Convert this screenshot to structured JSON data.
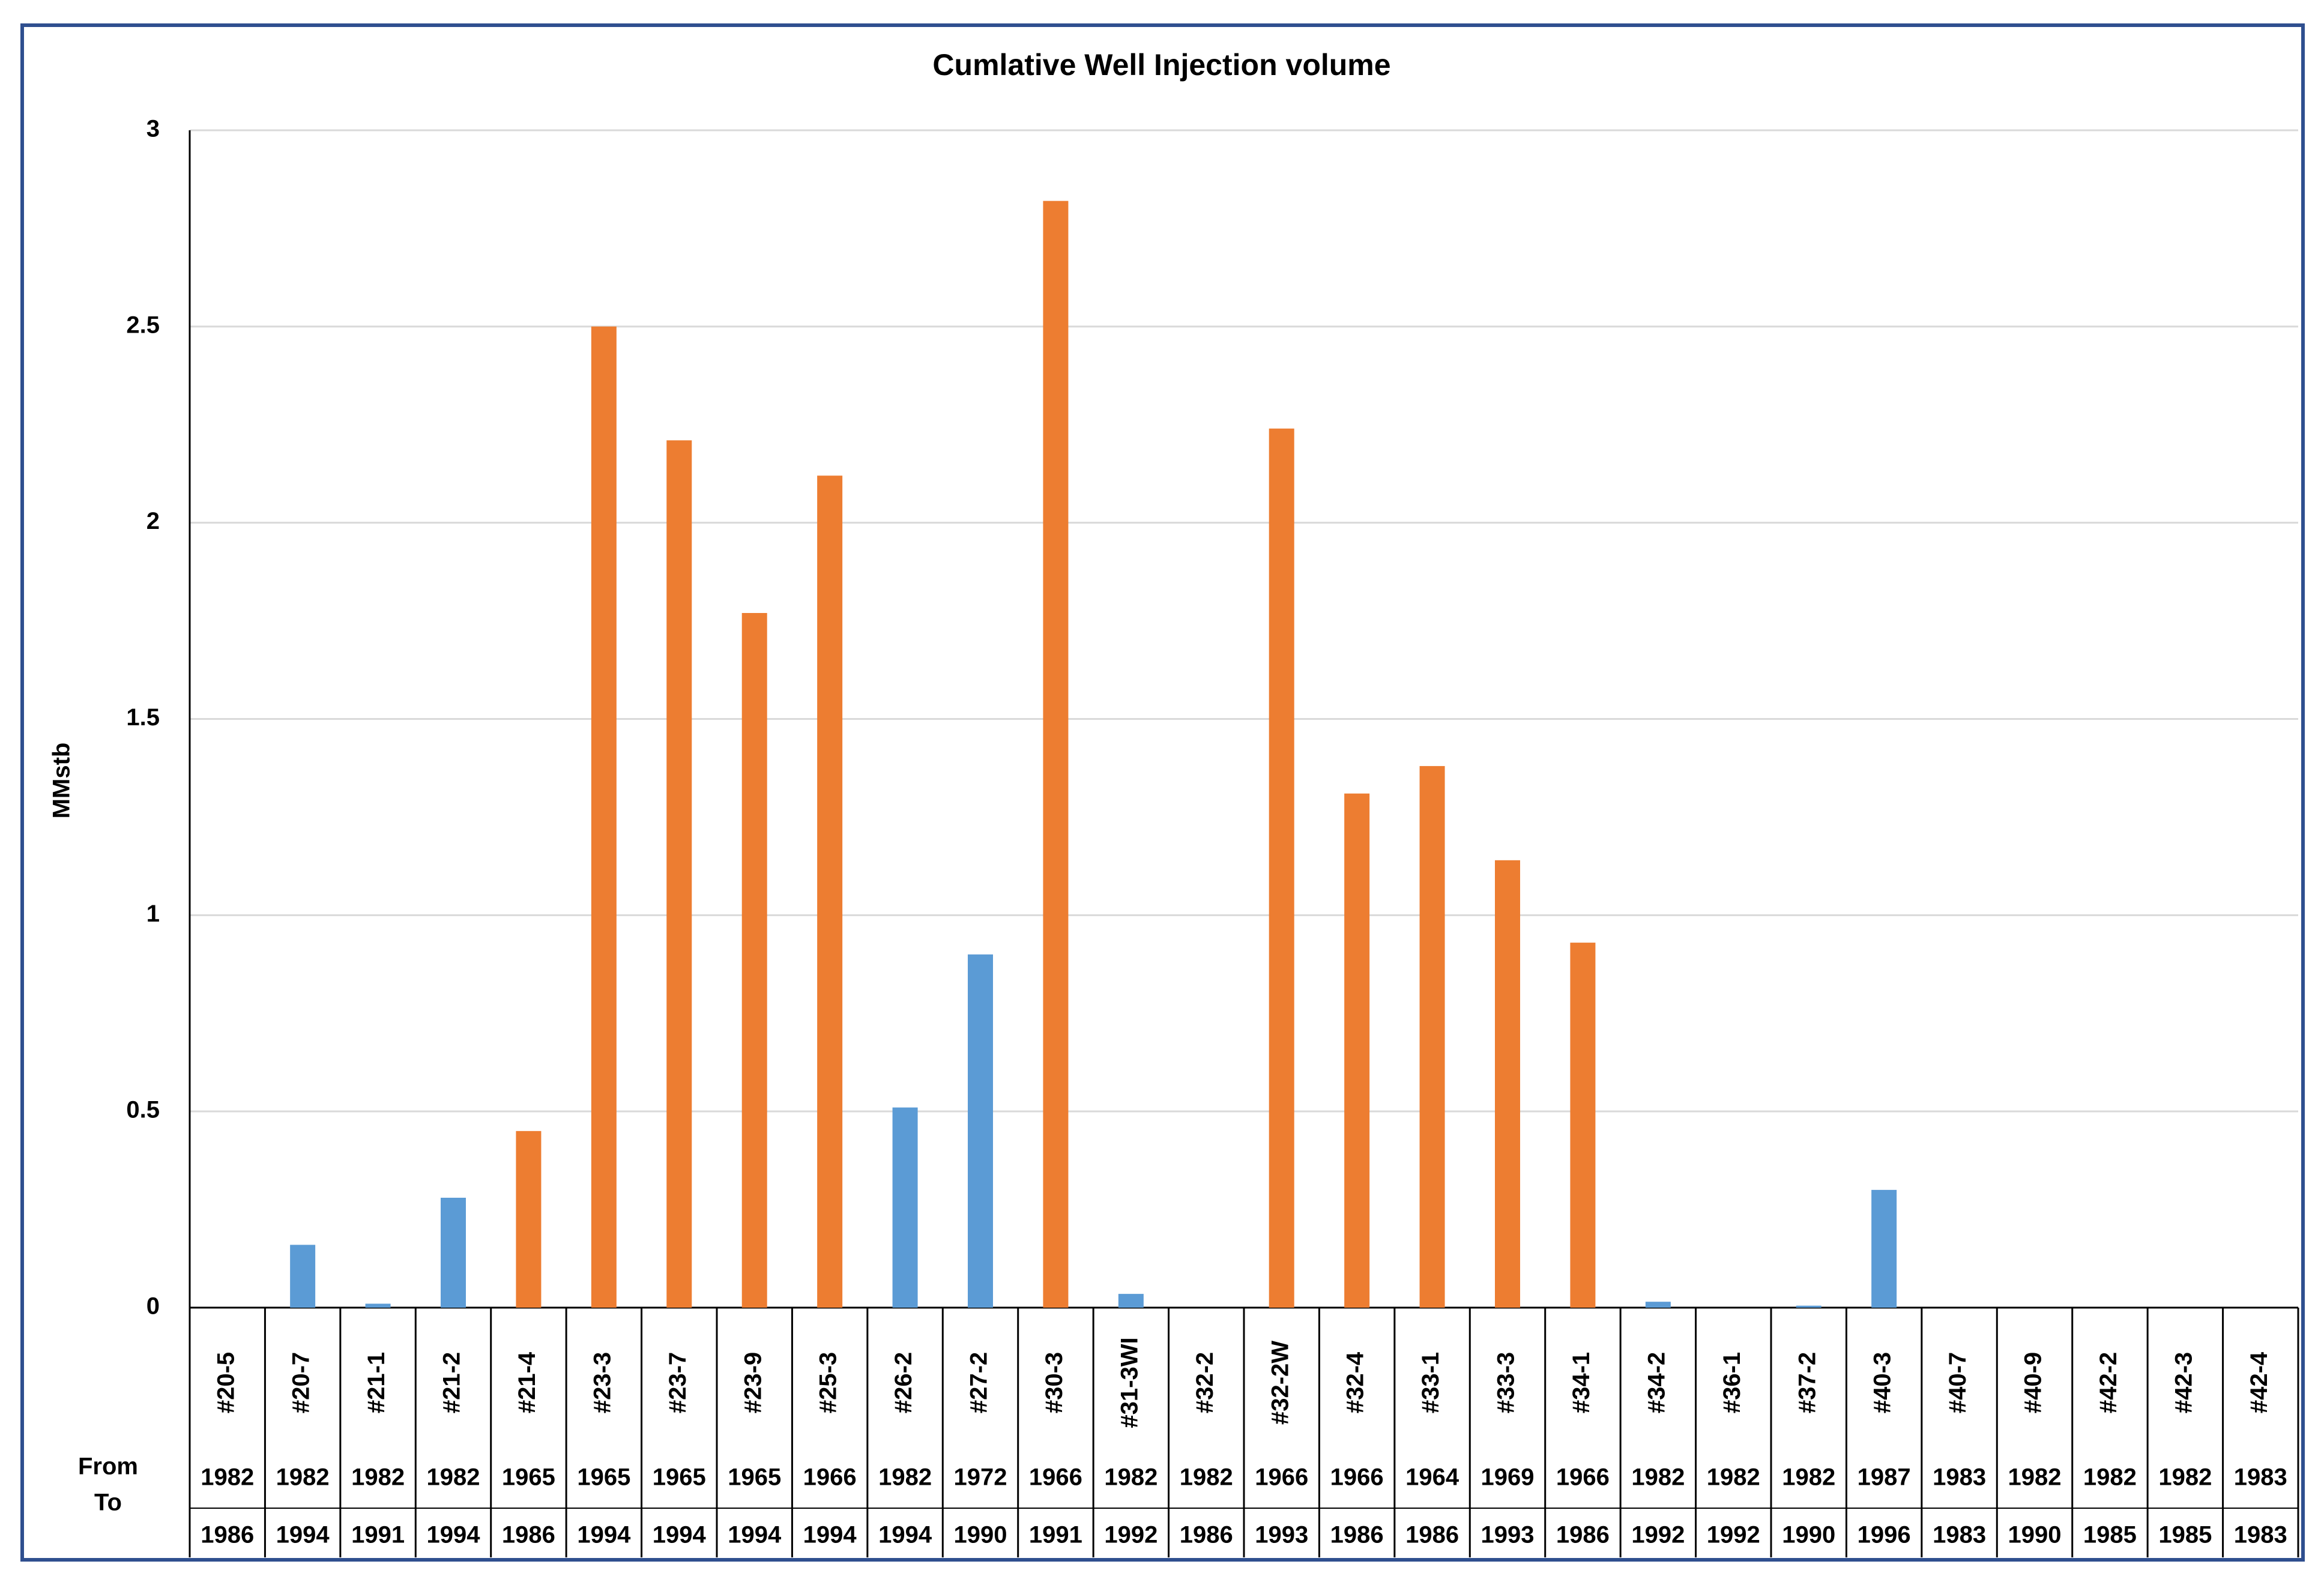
{
  "chart_data": {
    "type": "bar",
    "title": "Cumlative Well Injection volume",
    "y_label": "MMstb",
    "categories": [
      "#20-5",
      "#20-7",
      "#21-1",
      "#21-2",
      "#21-4",
      "#23-3",
      "#23-7",
      "#23-9",
      "#25-3",
      "#26-2",
      "#27-2",
      "#30-3",
      "#31-3WI",
      "#32-2",
      "#32-2W",
      "#32-4",
      "#33-1",
      "#33-3",
      "#34-1",
      "#34-2",
      "#36-1",
      "#37-2",
      "#40-3",
      "#40-7",
      "#40-9",
      "#42-2",
      "#42-3",
      "#42-4"
    ],
    "values": [
      0,
      0.16,
      0.01,
      0.28,
      0.45,
      2.5,
      2.21,
      1.77,
      2.12,
      0.51,
      0.9,
      2.82,
      0.035,
      0,
      2.24,
      1.31,
      1.38,
      1.14,
      0.93,
      0.015,
      0,
      0.005,
      0.3,
      0,
      0,
      0,
      0,
      0
    ],
    "colors": [
      "#5b9bd5",
      "#5b9bd5",
      "#5b9bd5",
      "#5b9bd5",
      "#ed7d31",
      "#ed7d31",
      "#ed7d31",
      "#ed7d31",
      "#ed7d31",
      "#5b9bd5",
      "#5b9bd5",
      "#ed7d31",
      "#5b9bd5",
      "#5b9bd5",
      "#ed7d31",
      "#ed7d31",
      "#ed7d31",
      "#ed7d31",
      "#ed7d31",
      "#5b9bd5",
      "#5b9bd5",
      "#5b9bd5",
      "#5b9bd5",
      "#5b9bd5",
      "#5b9bd5",
      "#5b9bd5",
      "#5b9bd5",
      "#5b9bd5"
    ],
    "from_label": "From",
    "to_label": "To",
    "from": [
      "1982",
      "1982",
      "1982",
      "1982",
      "1965",
      "1965",
      "1965",
      "1965",
      "1966",
      "1982",
      "1972",
      "1966",
      "1982",
      "1982",
      "1966",
      "1966",
      "1964",
      "1969",
      "1966",
      "1982",
      "1982",
      "1982",
      "1987",
      "1983",
      "1982",
      "1982",
      "1982",
      "1983"
    ],
    "to": [
      "1986",
      "1994",
      "1991",
      "1994",
      "1986",
      "1994",
      "1994",
      "1994",
      "1994",
      "1994",
      "1990",
      "1991",
      "1992",
      "1986",
      "1993",
      "1986",
      "1986",
      "1993",
      "1986",
      "1992",
      "1992",
      "1990",
      "1996",
      "1983",
      "1990",
      "1985",
      "1985",
      "1983"
    ],
    "ylim": [
      0,
      3
    ],
    "yticks": [
      0,
      0.5,
      1,
      1.5,
      2,
      2.5,
      3
    ],
    "grid": true
  }
}
